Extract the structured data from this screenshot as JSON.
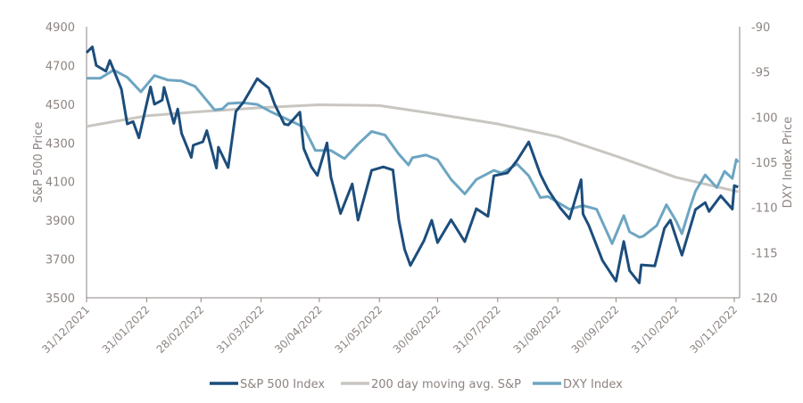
{
  "chart_data": {
    "type": "line",
    "title": "",
    "ylabel": "S&P 500 Price",
    "y2label": "DXY Index Price",
    "ylim": [
      3500,
      4900
    ],
    "y2lim": [
      -120,
      -90
    ],
    "yticks": [
      "3500",
      "3700",
      "3900",
      "4100",
      "4300",
      "4500",
      "4700",
      "4900"
    ],
    "y2ticks": [
      "-120",
      "-115",
      "-110",
      "-105",
      "-100",
      "-95",
      "-90"
    ],
    "xticks": [
      "31/12/2021",
      "31/01/2022",
      "28/02/2022",
      "31/03/2022",
      "30/04/2022",
      "31/05/2022",
      "30/06/2022",
      "31/07/2022",
      "31/08/2022",
      "30/09/2022",
      "31/10/2022",
      "30/11/2022"
    ],
    "grid": false,
    "legend": "bottom",
    "series": [
      {
        "name": "S&P 500 Index",
        "axis": "left",
        "color": "#1c4d7c",
        "points": [
          [
            "2021-12-31",
            4766
          ],
          [
            "2022-01-03",
            4796
          ],
          [
            "2022-01-05",
            4700
          ],
          [
            "2022-01-10",
            4670
          ],
          [
            "2022-01-12",
            4726
          ],
          [
            "2022-01-18",
            4577
          ],
          [
            "2022-01-21",
            4398
          ],
          [
            "2022-01-24",
            4410
          ],
          [
            "2022-01-27",
            4326
          ],
          [
            "2022-02-02",
            4589
          ],
          [
            "2022-02-04",
            4500
          ],
          [
            "2022-02-08",
            4521
          ],
          [
            "2022-02-09",
            4587
          ],
          [
            "2022-02-14",
            4401
          ],
          [
            "2022-02-16",
            4475
          ],
          [
            "2022-02-18",
            4349
          ],
          [
            "2022-02-23",
            4225
          ],
          [
            "2022-02-24",
            4288
          ],
          [
            "2022-03-01",
            4306
          ],
          [
            "2022-03-03",
            4363
          ],
          [
            "2022-03-08",
            4170
          ],
          [
            "2022-03-09",
            4278
          ],
          [
            "2022-03-14",
            4173
          ],
          [
            "2022-03-18",
            4463
          ],
          [
            "2022-03-22",
            4512
          ],
          [
            "2022-03-29",
            4632
          ],
          [
            "2022-04-04",
            4583
          ],
          [
            "2022-04-07",
            4500
          ],
          [
            "2022-04-12",
            4397
          ],
          [
            "2022-04-14",
            4393
          ],
          [
            "2022-04-20",
            4459
          ],
          [
            "2022-04-22",
            4272
          ],
          [
            "2022-04-26",
            4175
          ],
          [
            "2022-04-29",
            4132
          ],
          [
            "2022-05-04",
            4300
          ],
          [
            "2022-05-06",
            4123
          ],
          [
            "2022-05-11",
            3935
          ],
          [
            "2022-05-17",
            4088
          ],
          [
            "2022-05-20",
            3901
          ],
          [
            "2022-05-27",
            4158
          ],
          [
            "2022-06-02",
            4176
          ],
          [
            "2022-06-07",
            4160
          ],
          [
            "2022-06-10",
            3901
          ],
          [
            "2022-06-13",
            3750
          ],
          [
            "2022-06-16",
            3667
          ],
          [
            "2022-06-23",
            3795
          ],
          [
            "2022-06-27",
            3900
          ],
          [
            "2022-06-30",
            3785
          ],
          [
            "2022-07-07",
            3903
          ],
          [
            "2022-07-14",
            3790
          ],
          [
            "2022-07-20",
            3960
          ],
          [
            "2022-07-26",
            3921
          ],
          [
            "2022-07-29",
            4130
          ],
          [
            "2022-08-05",
            4145
          ],
          [
            "2022-08-10",
            4210
          ],
          [
            "2022-08-16",
            4305
          ],
          [
            "2022-08-22",
            4138
          ],
          [
            "2022-08-26",
            4058
          ],
          [
            "2022-09-01",
            3967
          ],
          [
            "2022-09-06",
            3908
          ],
          [
            "2022-09-12",
            4110
          ],
          [
            "2022-09-13",
            3932
          ],
          [
            "2022-09-16",
            3873
          ],
          [
            "2022-09-23",
            3693
          ],
          [
            "2022-09-30",
            3586
          ],
          [
            "2022-10-04",
            3791
          ],
          [
            "2022-10-07",
            3640
          ],
          [
            "2022-10-12",
            3577
          ],
          [
            "2022-10-13",
            3670
          ],
          [
            "2022-10-20",
            3665
          ],
          [
            "2022-10-25",
            3859
          ],
          [
            "2022-10-28",
            3901
          ],
          [
            "2022-11-03",
            3720
          ],
          [
            "2022-11-10",
            3956
          ],
          [
            "2022-11-15",
            3992
          ],
          [
            "2022-11-17",
            3946
          ],
          [
            "2022-11-23",
            4027
          ],
          [
            "2022-11-29",
            3958
          ],
          [
            "2022-11-30",
            4080
          ],
          [
            "2022-12-02",
            4072
          ]
        ]
      },
      {
        "name": "200 day moving avg. S&P",
        "axis": "left",
        "color": "#c9c6c1",
        "points": [
          [
            "2021-12-31",
            4385
          ],
          [
            "2022-01-31",
            4440
          ],
          [
            "2022-02-28",
            4462
          ],
          [
            "2022-03-31",
            4482
          ],
          [
            "2022-04-30",
            4497
          ],
          [
            "2022-05-31",
            4493
          ],
          [
            "2022-06-30",
            4448
          ],
          [
            "2022-07-31",
            4398
          ],
          [
            "2022-08-31",
            4332
          ],
          [
            "2022-09-30",
            4232
          ],
          [
            "2022-10-31",
            4122
          ],
          [
            "2022-12-02",
            4048
          ]
        ]
      },
      {
        "name": "DXY Index",
        "axis": "right",
        "color": "#6da5c2",
        "points": [
          [
            "2021-12-31",
            -95.7
          ],
          [
            "2022-01-07",
            -95.7
          ],
          [
            "2022-01-14",
            -94.8
          ],
          [
            "2022-01-21",
            -95.6
          ],
          [
            "2022-01-28",
            -97.2
          ],
          [
            "2022-02-04",
            -95.4
          ],
          [
            "2022-02-11",
            -95.9
          ],
          [
            "2022-02-18",
            -96.0
          ],
          [
            "2022-02-25",
            -96.6
          ],
          [
            "2022-03-07",
            -99.2
          ],
          [
            "2022-03-11",
            -99.1
          ],
          [
            "2022-03-14",
            -98.5
          ],
          [
            "2022-03-21",
            -98.4
          ],
          [
            "2022-03-29",
            -98.6
          ],
          [
            "2022-04-05",
            -99.4
          ],
          [
            "2022-04-14",
            -100.3
          ],
          [
            "2022-04-22",
            -101.1
          ],
          [
            "2022-04-28",
            -103.7
          ],
          [
            "2022-05-06",
            -103.7
          ],
          [
            "2022-05-13",
            -104.6
          ],
          [
            "2022-05-20",
            -103.0
          ],
          [
            "2022-05-27",
            -101.6
          ],
          [
            "2022-06-03",
            -102.0
          ],
          [
            "2022-06-10",
            -104.1
          ],
          [
            "2022-06-15",
            -105.3
          ],
          [
            "2022-06-17",
            -104.5
          ],
          [
            "2022-06-24",
            -104.2
          ],
          [
            "2022-06-30",
            -104.7
          ],
          [
            "2022-07-07",
            -106.9
          ],
          [
            "2022-07-14",
            -108.5
          ],
          [
            "2022-07-20",
            -106.9
          ],
          [
            "2022-07-29",
            -105.9
          ],
          [
            "2022-08-02",
            -106.2
          ],
          [
            "2022-08-10",
            -105.2
          ],
          [
            "2022-08-16",
            -106.5
          ],
          [
            "2022-08-22",
            -108.9
          ],
          [
            "2022-08-26",
            -108.8
          ],
          [
            "2022-09-06",
            -110.2
          ],
          [
            "2022-09-13",
            -109.8
          ],
          [
            "2022-09-20",
            -110.2
          ],
          [
            "2022-09-28",
            -114.0
          ],
          [
            "2022-10-04",
            -110.9
          ],
          [
            "2022-10-07",
            -112.7
          ],
          [
            "2022-10-12",
            -113.3
          ],
          [
            "2022-10-14",
            -113.2
          ],
          [
            "2022-10-21",
            -112.0
          ],
          [
            "2022-10-26",
            -109.7
          ],
          [
            "2022-10-31",
            -111.5
          ],
          [
            "2022-11-03",
            -112.9
          ],
          [
            "2022-11-07",
            -110.1
          ],
          [
            "2022-11-10",
            -108.2
          ],
          [
            "2022-11-15",
            -106.4
          ],
          [
            "2022-11-21",
            -107.8
          ],
          [
            "2022-11-25",
            -106.0
          ],
          [
            "2022-11-29",
            -106.8
          ],
          [
            "2022-12-01",
            -104.7
          ],
          [
            "2022-12-02",
            -105.0
          ]
        ]
      }
    ]
  }
}
